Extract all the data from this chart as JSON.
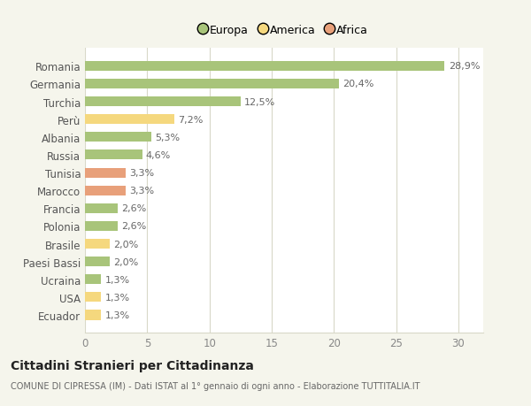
{
  "categories": [
    "Romania",
    "Germania",
    "Turchia",
    "Perù",
    "Albania",
    "Russia",
    "Tunisia",
    "Marocco",
    "Francia",
    "Polonia",
    "Brasile",
    "Paesi Bassi",
    "Ucraina",
    "USA",
    "Ecuador"
  ],
  "values": [
    28.9,
    20.4,
    12.5,
    7.2,
    5.3,
    4.6,
    3.3,
    3.3,
    2.6,
    2.6,
    2.0,
    2.0,
    1.3,
    1.3,
    1.3
  ],
  "labels": [
    "28,9%",
    "20,4%",
    "12,5%",
    "7,2%",
    "5,3%",
    "4,6%",
    "3,3%",
    "3,3%",
    "2,6%",
    "2,6%",
    "2,0%",
    "2,0%",
    "1,3%",
    "1,3%",
    "1,3%"
  ],
  "colors": [
    "#a8c47a",
    "#a8c47a",
    "#a8c47a",
    "#f5d87e",
    "#a8c47a",
    "#a8c47a",
    "#e8a07a",
    "#e8a07a",
    "#a8c47a",
    "#a8c47a",
    "#f5d87e",
    "#a8c47a",
    "#a8c47a",
    "#f5d87e",
    "#f5d87e"
  ],
  "legend": [
    {
      "label": "Europa",
      "color": "#a8c47a"
    },
    {
      "label": "America",
      "color": "#f5d87e"
    },
    {
      "label": "Africa",
      "color": "#e8a07a"
    }
  ],
  "xlim": [
    0,
    32
  ],
  "xticks": [
    0,
    5,
    10,
    15,
    20,
    25,
    30
  ],
  "title": "Cittadini Stranieri per Cittadinanza",
  "subtitle": "COMUNE DI CIPRESSA (IM) - Dati ISTAT al 1° gennaio di ogni anno - Elaborazione TUTTITALIA.IT",
  "background_color": "#f5f5ec",
  "bar_background": "#ffffff",
  "grid_color": "#d8d8c8"
}
